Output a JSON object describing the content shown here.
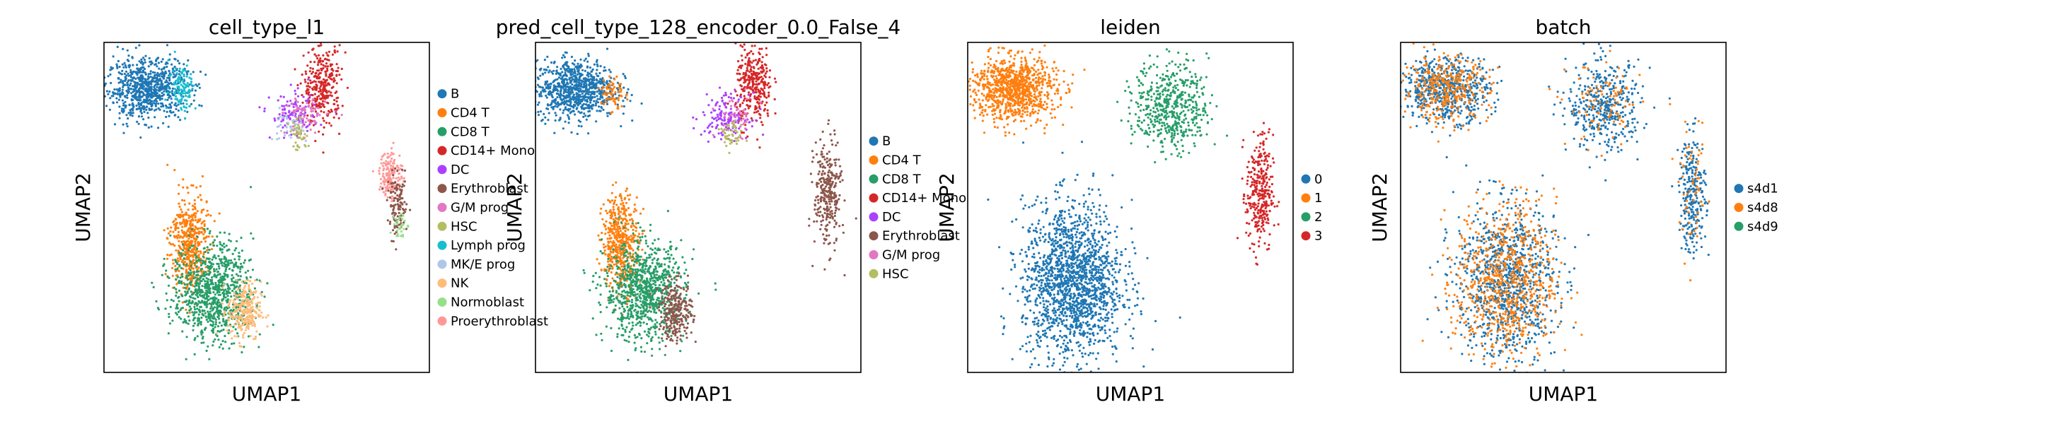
{
  "chart_data": [
    {
      "type": "scatter",
      "title": "cell_type_l1",
      "xlabel": "UMAP1",
      "ylabel": "UMAP2",
      "legend_placement": "right-outside",
      "grid": false,
      "categories": [
        "B",
        "CD4 T",
        "CD8 T",
        "CD14+ Mono",
        "DC",
        "Erythroblast",
        "G/M prog",
        "HSC",
        "Lymph prog",
        "MK/E prog",
        "NK",
        "Normoblast",
        "Proerythroblast"
      ],
      "colors": [
        "#1f77b4",
        "#ff7f0e",
        "#279e68",
        "#d62728",
        "#aa40fc",
        "#8c564b",
        "#e377c2",
        "#b5bd61",
        "#17becf",
        "#aec7e8",
        "#ffbb78",
        "#98df8a",
        "#ff9896"
      ],
      "clusters": [
        {
          "category": "B",
          "x": -6.4,
          "y": 7.1,
          "sx": 1.2,
          "sy": 0.6,
          "n": 800
        },
        {
          "category": "Lymph prog",
          "x": -4.3,
          "y": 7.2,
          "sx": 0.4,
          "sy": 0.5,
          "n": 110
        },
        {
          "category": "CD14+ Mono",
          "x": 4.1,
          "y": 7.2,
          "sx": 0.55,
          "sy": 0.8,
          "n": 320
        },
        {
          "category": "DC",
          "x": 2.4,
          "y": 6.0,
          "sx": 0.7,
          "sy": 0.45,
          "n": 120
        },
        {
          "category": "G/M prog",
          "x": 3.1,
          "y": 6.0,
          "sx": 0.6,
          "sy": 0.4,
          "n": 70
        },
        {
          "category": "MK/E prog",
          "x": 1.9,
          "y": 5.6,
          "sx": 0.5,
          "sy": 0.3,
          "n": 40
        },
        {
          "category": "HSC",
          "x": 2.7,
          "y": 5.2,
          "sx": 0.3,
          "sy": 0.3,
          "n": 40
        },
        {
          "category": "Proerythroblast",
          "x": 8.2,
          "y": 3.6,
          "sx": 0.35,
          "sy": 0.5,
          "n": 160
        },
        {
          "category": "Erythroblast",
          "x": 8.6,
          "y": 2.3,
          "sx": 0.3,
          "sy": 0.6,
          "n": 120
        },
        {
          "category": "Normoblast",
          "x": 8.8,
          "y": 1.5,
          "sx": 0.2,
          "sy": 0.3,
          "n": 30
        },
        {
          "category": "CD4 T",
          "x": -3.9,
          "y": 0.8,
          "sx": 0.55,
          "sy": 1.0,
          "n": 500
        },
        {
          "category": "CD8 T",
          "x": -2.5,
          "y": -1.2,
          "sx": 1.2,
          "sy": 1.0,
          "n": 900
        },
        {
          "category": "NK",
          "x": -0.6,
          "y": -2.0,
          "sx": 0.5,
          "sy": 0.6,
          "n": 260
        }
      ]
    },
    {
      "type": "scatter",
      "title": "pred_cell_type_128_encoder_0.0_False_4",
      "xlabel": "UMAP1",
      "ylabel": "UMAP2",
      "legend_placement": "right-outside",
      "grid": false,
      "categories": [
        "B",
        "CD4 T",
        "CD8 T",
        "CD14+ Mono",
        "DC",
        "Erythroblast",
        "G/M prog",
        "HSC"
      ],
      "colors": [
        "#1f77b4",
        "#ff7f0e",
        "#279e68",
        "#d62728",
        "#aa40fc",
        "#8c564b",
        "#e377c2",
        "#b5bd61"
      ],
      "clusters": [
        {
          "category": "B",
          "x": -6.6,
          "y": 7.1,
          "sx": 1.2,
          "sy": 0.6,
          "n": 850
        },
        {
          "category": "CD4 T",
          "x": -4.4,
          "y": 6.9,
          "sx": 0.35,
          "sy": 0.4,
          "n": 70
        },
        {
          "category": "CD14+ Mono",
          "x": 4.1,
          "y": 7.2,
          "sx": 0.55,
          "sy": 0.8,
          "n": 320
        },
        {
          "category": "DC",
          "x": 2.4,
          "y": 6.0,
          "sx": 0.7,
          "sy": 0.45,
          "n": 140
        },
        {
          "category": "G/M prog",
          "x": 3.1,
          "y": 6.0,
          "sx": 0.6,
          "sy": 0.4,
          "n": 50
        },
        {
          "category": "HSC",
          "x": 2.7,
          "y": 5.2,
          "sx": 0.35,
          "sy": 0.3,
          "n": 50
        },
        {
          "category": "Erythroblast",
          "x": 8.5,
          "y": 2.8,
          "sx": 0.4,
          "sy": 1.1,
          "n": 300
        },
        {
          "category": "CD4 T",
          "x": -3.9,
          "y": 0.8,
          "sx": 0.55,
          "sy": 1.0,
          "n": 500
        },
        {
          "category": "CD8 T",
          "x": -2.5,
          "y": -1.2,
          "sx": 1.2,
          "sy": 1.0,
          "n": 900
        },
        {
          "category": "Erythroblast",
          "x": -0.6,
          "y": -2.0,
          "sx": 0.5,
          "sy": 0.6,
          "n": 260
        }
      ]
    },
    {
      "type": "scatter",
      "title": "leiden",
      "xlabel": "UMAP1",
      "ylabel": "UMAP2",
      "legend_placement": "right-outside",
      "grid": false,
      "categories": [
        "0",
        "1",
        "2",
        "3"
      ],
      "colors": [
        "#1f77b4",
        "#ff7f0e",
        "#279e68",
        "#d62728"
      ],
      "clusters": [
        {
          "category": "1",
          "x": -6.3,
          "y": 7.1,
          "sx": 1.3,
          "sy": 0.65,
          "n": 950
        },
        {
          "category": "2",
          "x": 3.2,
          "y": 6.4,
          "sx": 1.1,
          "sy": 0.9,
          "n": 520
        },
        {
          "category": "3",
          "x": 8.5,
          "y": 2.8,
          "sx": 0.4,
          "sy": 1.2,
          "n": 320
        },
        {
          "category": "0",
          "x": -2.7,
          "y": -0.8,
          "sx": 1.5,
          "sy": 1.6,
          "n": 1700
        }
      ]
    },
    {
      "type": "scatter",
      "title": "batch",
      "xlabel": "UMAP1",
      "ylabel": "UMAP2",
      "legend_placement": "right-outside",
      "grid": false,
      "categories": [
        "s4d1",
        "s4d8",
        "s4d9"
      ],
      "colors": [
        "#1f77b4",
        "#ff7f0e",
        "#279e68"
      ],
      "clusters": [
        {
          "category": "s4d1",
          "x": -6.3,
          "y": 7.1,
          "sx": 1.3,
          "sy": 0.65,
          "n": 600
        },
        {
          "category": "s4d8",
          "x": -6.3,
          "y": 7.1,
          "sx": 1.3,
          "sy": 0.65,
          "n": 350
        },
        {
          "category": "s4d1",
          "x": 3.2,
          "y": 6.4,
          "sx": 1.1,
          "sy": 0.9,
          "n": 420
        },
        {
          "category": "s4d8",
          "x": 3.2,
          "y": 6.4,
          "sx": 1.1,
          "sy": 0.9,
          "n": 100
        },
        {
          "category": "s4d1",
          "x": 8.5,
          "y": 2.8,
          "sx": 0.4,
          "sy": 1.2,
          "n": 260
        },
        {
          "category": "s4d8",
          "x": 8.5,
          "y": 2.8,
          "sx": 0.4,
          "sy": 1.2,
          "n": 60
        },
        {
          "category": "s4d1",
          "x": -2.7,
          "y": -0.8,
          "sx": 1.5,
          "sy": 1.6,
          "n": 950
        },
        {
          "category": "s4d8",
          "x": -2.7,
          "y": -0.8,
          "sx": 1.5,
          "sy": 1.6,
          "n": 750
        }
      ]
    }
  ]
}
